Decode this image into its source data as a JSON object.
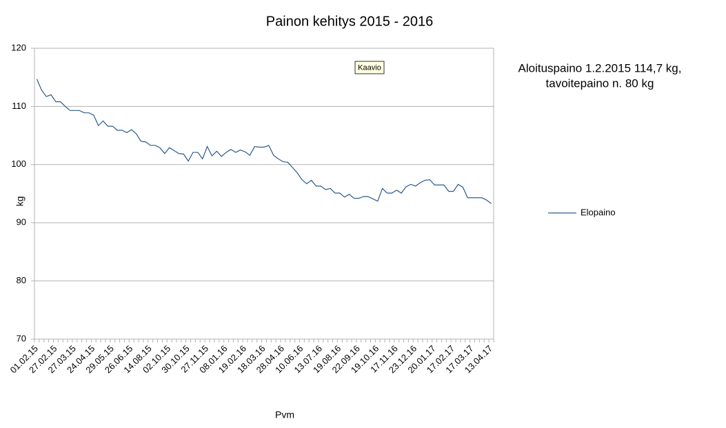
{
  "chart_data": {
    "type": "line",
    "title": "Painon kehitys 2015 - 2016",
    "x_label": "Pvm",
    "y_label": "kg",
    "annotation": [
      "Aloituspaino 1.2.2015 114,7 kg,",
      "tavoitepaino n. 80 kg"
    ],
    "tooltip": "Kaavio",
    "categories": [
      "01.02.15",
      null,
      null,
      null,
      "27.02.15",
      null,
      null,
      null,
      "27.03.15",
      null,
      null,
      null,
      "24.04.15",
      null,
      null,
      null,
      "29.05.15",
      null,
      null,
      null,
      "26.06.15",
      null,
      null,
      null,
      "14.08.15",
      null,
      null,
      null,
      "02.10.15",
      null,
      null,
      null,
      "30.10.15",
      null,
      null,
      null,
      "27.11.15",
      null,
      null,
      null,
      "08.01.16",
      null,
      null,
      null,
      "19.02.16",
      null,
      null,
      null,
      "18.03.16",
      null,
      null,
      null,
      "28.04.16",
      null,
      null,
      null,
      "10.06.16",
      null,
      null,
      null,
      "13.07.16",
      null,
      null,
      null,
      "19.08.16",
      null,
      null,
      null,
      "22.09.16",
      null,
      null,
      null,
      "19.10.16",
      null,
      null,
      null,
      "17.11.16",
      null,
      null,
      null,
      "23.12.16",
      null,
      null,
      null,
      "20.01.17",
      null,
      null,
      null,
      "17.02.17",
      null,
      null,
      null,
      "17.03.17",
      null,
      null,
      null,
      "13.04.17"
    ],
    "series": [
      {
        "name": "Elopaino",
        "color": "#2a5a8c",
        "values": [
          114.7,
          112.8,
          111.7,
          112.0,
          110.8,
          110.8,
          110.0,
          109.3,
          109.3,
          109.3,
          108.9,
          108.9,
          108.5,
          106.7,
          107.5,
          106.6,
          106.6,
          105.9,
          105.9,
          105.5,
          106.0,
          105.3,
          104.0,
          103.9,
          103.3,
          103.3,
          102.9,
          101.9,
          102.9,
          102.4,
          101.9,
          101.8,
          100.6,
          102.1,
          102.1,
          101.0,
          103.1,
          101.5,
          102.3,
          101.4,
          102.1,
          102.6,
          102.1,
          102.5,
          102.2,
          101.6,
          103.1,
          103.0,
          103.0,
          103.3,
          101.6,
          101.0,
          100.5,
          100.4,
          99.5,
          98.6,
          97.4,
          96.7,
          97.3,
          96.3,
          96.3,
          95.7,
          95.9,
          95.1,
          95.1,
          94.4,
          94.9,
          94.2,
          94.2,
          94.5,
          94.5,
          94.1,
          93.7,
          95.9,
          95.1,
          95.1,
          95.6,
          95.1,
          96.2,
          96.6,
          96.3,
          96.9,
          97.3,
          97.4,
          96.5,
          96.5,
          96.5,
          95.4,
          95.4,
          96.6,
          96.1,
          94.3,
          94.3,
          94.3,
          94.3,
          93.9,
          93.3
        ]
      }
    ],
    "ylim": [
      70,
      120
    ],
    "yticks": [
      70,
      80,
      90,
      100,
      110,
      120
    ],
    "grid": true,
    "legend": "right"
  }
}
